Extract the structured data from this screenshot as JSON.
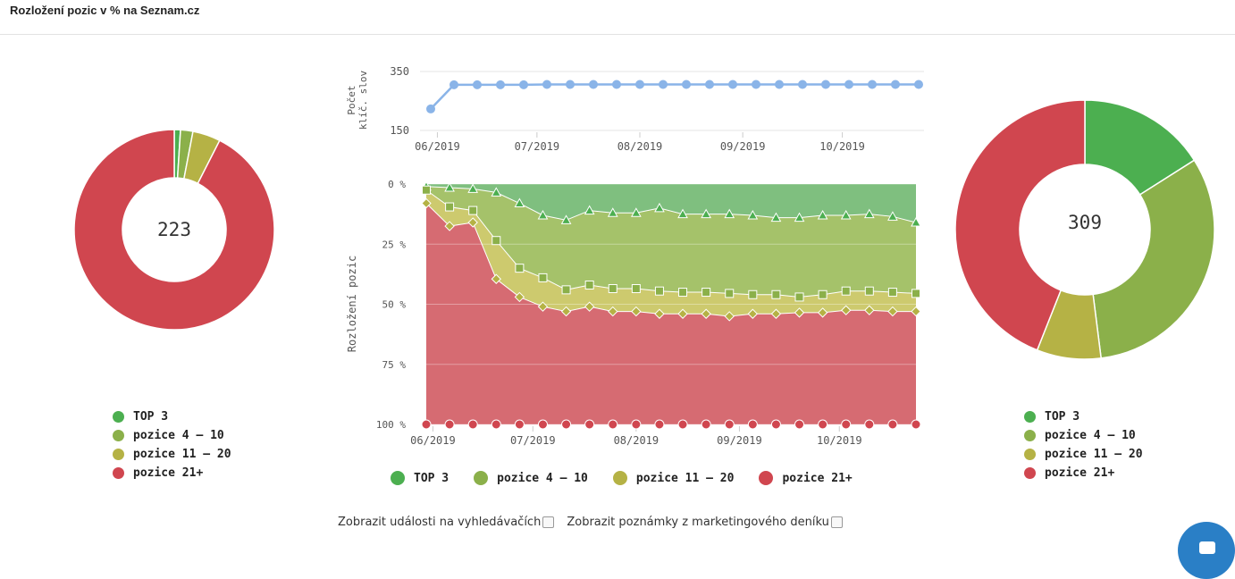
{
  "page": {
    "title": "Rozložení pozic v % na Seznam.cz"
  },
  "colors": {
    "top3": "#4caf50",
    "pos4_10": "#8bb04a",
    "pos11_20": "#b5b245",
    "pos21": "#d0464f"
  },
  "legend": [
    {
      "label": "TOP 3",
      "color": "#4caf50"
    },
    {
      "label": "pozice 4 – 10",
      "color": "#8bb04a"
    },
    {
      "label": "pozice 11 – 20",
      "color": "#b5b245"
    },
    {
      "label": "pozice 21+",
      "color": "#d0464f"
    }
  ],
  "options": {
    "events_label": "Zobrazit události na vyhledávačích",
    "notes_label": "Zobrazit poznámky z marketingového deníku"
  },
  "chart_data": [
    {
      "type": "pie",
      "variant": "donut",
      "center_label": "223",
      "categories": [
        "TOP 3",
        "pozice 4 – 10",
        "pozice 11 – 20",
        "pozice 21+"
      ],
      "values": [
        1.0,
        2.0,
        4.5,
        92.5
      ]
    },
    {
      "type": "line",
      "ylabel": "Počet klíč. slov",
      "yticks": [
        "150",
        "350"
      ],
      "ylim": [
        150,
        350
      ],
      "xticks": [
        "06/2019",
        "07/2019",
        "08/2019",
        "09/2019",
        "10/2019"
      ],
      "x": [
        "2019-05-30",
        "2019-06-06",
        "2019-06-13",
        "2019-06-20",
        "2019-06-27",
        "2019-07-04",
        "2019-07-11",
        "2019-07-18",
        "2019-07-25",
        "2019-08-01",
        "2019-08-08",
        "2019-08-15",
        "2019-08-22",
        "2019-08-29",
        "2019-09-05",
        "2019-09-12",
        "2019-09-19",
        "2019-09-26",
        "2019-10-03",
        "2019-10-10",
        "2019-10-17",
        "2019-10-24"
      ],
      "series": [
        {
          "values": [
            223,
            305,
            305,
            305,
            305,
            306,
            306,
            306,
            306,
            306,
            306,
            306,
            306,
            306,
            306,
            306,
            306,
            306,
            306,
            306,
            306,
            306
          ]
        }
      ]
    },
    {
      "type": "area",
      "stacked": true,
      "ylabel": "Rozložení pozic",
      "yticks": [
        "0 %",
        "25 %",
        "50 %",
        "75 %",
        "100 %"
      ],
      "ylim": [
        0,
        100
      ],
      "xticks": [
        "06/2019",
        "07/2019",
        "08/2019",
        "09/2019",
        "10/2019"
      ],
      "x": [
        "2019-05-30",
        "2019-06-06",
        "2019-06-13",
        "2019-06-20",
        "2019-06-27",
        "2019-07-04",
        "2019-07-11",
        "2019-07-18",
        "2019-07-25",
        "2019-08-01",
        "2019-08-08",
        "2019-08-15",
        "2019-08-22",
        "2019-08-29",
        "2019-09-05",
        "2019-09-12",
        "2019-09-19",
        "2019-09-26",
        "2019-10-03",
        "2019-10-10",
        "2019-10-17",
        "2019-10-24"
      ],
      "series": [
        {
          "name": "TOP 3",
          "values": [
            1,
            1.5,
            2,
            3.5,
            8,
            13,
            15,
            11,
            12,
            12,
            10,
            12.5,
            12.5,
            12.5,
            13,
            14,
            14,
            13,
            13,
            12.5,
            13.5,
            16
          ]
        },
        {
          "name": "pozice 4 – 10",
          "values": [
            1.5,
            8,
            9,
            20,
            27,
            26,
            29,
            31,
            31.5,
            31.5,
            34.5,
            32.5,
            32.5,
            33,
            33,
            32,
            33,
            33,
            31.5,
            32,
            31.5,
            29.5
          ]
        },
        {
          "name": "pozice 11 – 20",
          "values": [
            5.5,
            8,
            5,
            16,
            12,
            12,
            9,
            9,
            9.5,
            9.5,
            9.5,
            9,
            9,
            9.5,
            8,
            8,
            6.5,
            7.5,
            8,
            8,
            8,
            7.5
          ]
        },
        {
          "name": "pozice 21+",
          "values": [
            92,
            82.5,
            84,
            60.5,
            53,
            49,
            47,
            49,
            47,
            47,
            46,
            46,
            46,
            45,
            46,
            46,
            46.5,
            46.5,
            47.5,
            47.5,
            47,
            47
          ]
        }
      ]
    },
    {
      "type": "pie",
      "variant": "donut",
      "center_label": "309",
      "categories": [
        "TOP 3",
        "pozice 4 – 10",
        "pozice 11 – 20",
        "pozice 21+"
      ],
      "values": [
        16,
        32,
        8,
        44
      ]
    }
  ]
}
